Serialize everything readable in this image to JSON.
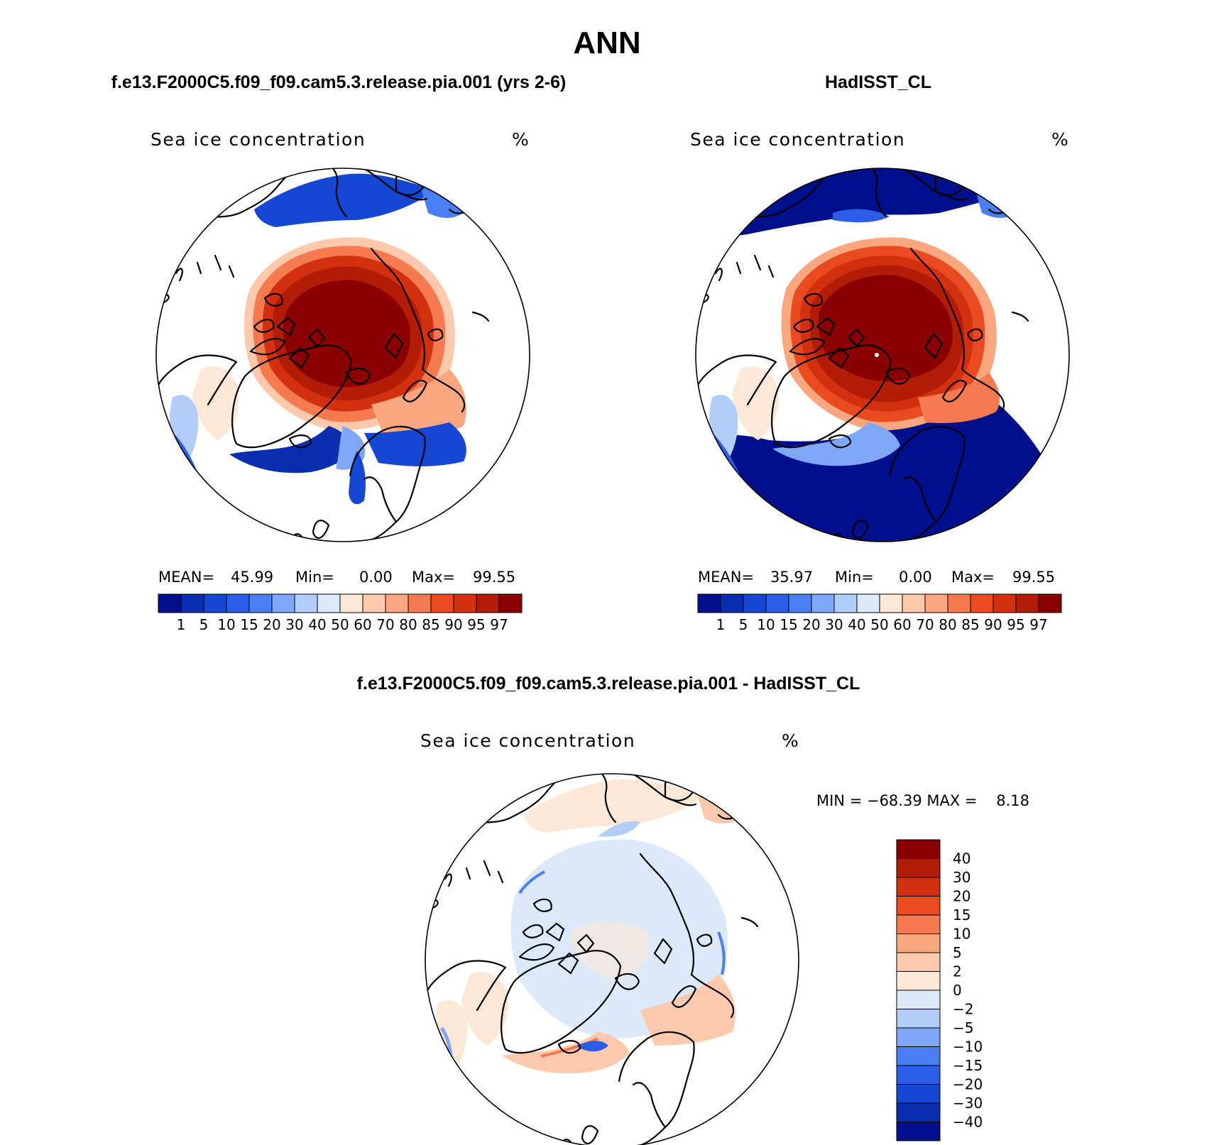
{
  "figure_title": "ANN",
  "panels": [
    {
      "title": "f.e13.F2000C5.f09_f09.cam5.3.release.pia.001 (yrs 2-6)",
      "variable": "Sea ice concentration",
      "units": "%",
      "stats": {
        "mean_label": "MEAN=",
        "mean": "45.99",
        "min_label": "Min=",
        "min": "0.00",
        "max_label": "Max=",
        "max": "99.55"
      }
    },
    {
      "title": "HadISST_CL",
      "variable": "Sea ice concentration",
      "units": "%",
      "stats": {
        "mean_label": "MEAN=",
        "mean": "35.97",
        "min_label": "Min=",
        "min": "0.00",
        "max_label": "Max=",
        "max": "99.55"
      }
    },
    {
      "title": "f.e13.F2000C5.f09_f09.cam5.3.release.pia.001 - HadISST_CL",
      "variable": "Sea ice concentration",
      "units": "%",
      "minmax_text": "MIN = −68.39 MAX =    8.18"
    }
  ],
  "chart_data": [
    {
      "type": "heatmap",
      "projection": "north polar stereographic",
      "title": "f.e13.F2000C5.f09_f09.cam5.3.release.pia.001 (yrs 2-6)",
      "variable": "Sea ice concentration",
      "units": "%",
      "mean": 45.99,
      "min": 0.0,
      "max": 99.55,
      "colorbar": {
        "orientation": "horizontal",
        "levels": [
          1,
          5,
          10,
          15,
          20,
          30,
          40,
          50,
          60,
          70,
          80,
          85,
          90,
          95,
          97
        ],
        "tick_labels": [
          "1",
          "5",
          "10",
          "15",
          "20",
          "30",
          "40",
          "50",
          "60",
          "70",
          "80",
          "85",
          "90",
          "95",
          "97"
        ],
        "colors": [
          "#000f8c",
          "#0a2eb0",
          "#1546d4",
          "#2a5ee8",
          "#4a7ef4",
          "#7fa7f7",
          "#b3cdfa",
          "#dbe9fb",
          "#fde8d7",
          "#fcc9ad",
          "#faa67f",
          "#f57a4f",
          "#ea4a1f",
          "#d2300f",
          "#b31c06",
          "#8a0000"
        ]
      }
    },
    {
      "type": "heatmap",
      "projection": "north polar stereographic",
      "title": "HadISST_CL",
      "variable": "Sea ice concentration",
      "units": "%",
      "mean": 35.97,
      "min": 0.0,
      "max": 99.55,
      "colorbar": {
        "orientation": "horizontal",
        "levels": [
          1,
          5,
          10,
          15,
          20,
          30,
          40,
          50,
          60,
          70,
          80,
          85,
          90,
          95,
          97
        ],
        "tick_labels": [
          "1",
          "5",
          "10",
          "15",
          "20",
          "30",
          "40",
          "50",
          "60",
          "70",
          "80",
          "85",
          "90",
          "95",
          "97"
        ],
        "colors": [
          "#000f8c",
          "#0a2eb0",
          "#1546d4",
          "#2a5ee8",
          "#4a7ef4",
          "#7fa7f7",
          "#b3cdfa",
          "#dbe9fb",
          "#fde8d7",
          "#fcc9ad",
          "#faa67f",
          "#f57a4f",
          "#ea4a1f",
          "#d2300f",
          "#b31c06",
          "#8a0000"
        ]
      }
    },
    {
      "type": "heatmap",
      "projection": "north polar stereographic",
      "title": "f.e13.F2000C5.f09_f09.cam5.3.release.pia.001 - HadISST_CL",
      "variable": "Sea ice concentration",
      "units": "%",
      "min": -68.39,
      "max": 8.18,
      "colorbar": {
        "orientation": "vertical",
        "levels": [
          40,
          30,
          20,
          15,
          10,
          5,
          2,
          0,
          -2,
          -5,
          -10,
          -15,
          -20,
          -30,
          -40
        ],
        "tick_labels": [
          "40",
          "30",
          "20",
          "15",
          "10",
          "5",
          "2",
          "0",
          "−2",
          "−5",
          "−10",
          "−15",
          "−20",
          "−30",
          "−40"
        ],
        "colors": [
          "#8a0000",
          "#b31c06",
          "#d2300f",
          "#ea4a1f",
          "#f57a4f",
          "#faa67f",
          "#fcc9ad",
          "#fde8d7",
          "#dbe9fb",
          "#b3cdfa",
          "#7fa7f7",
          "#4a7ef4",
          "#2a5ee8",
          "#1546d4",
          "#0a2eb0",
          "#000f8c"
        ]
      }
    }
  ]
}
